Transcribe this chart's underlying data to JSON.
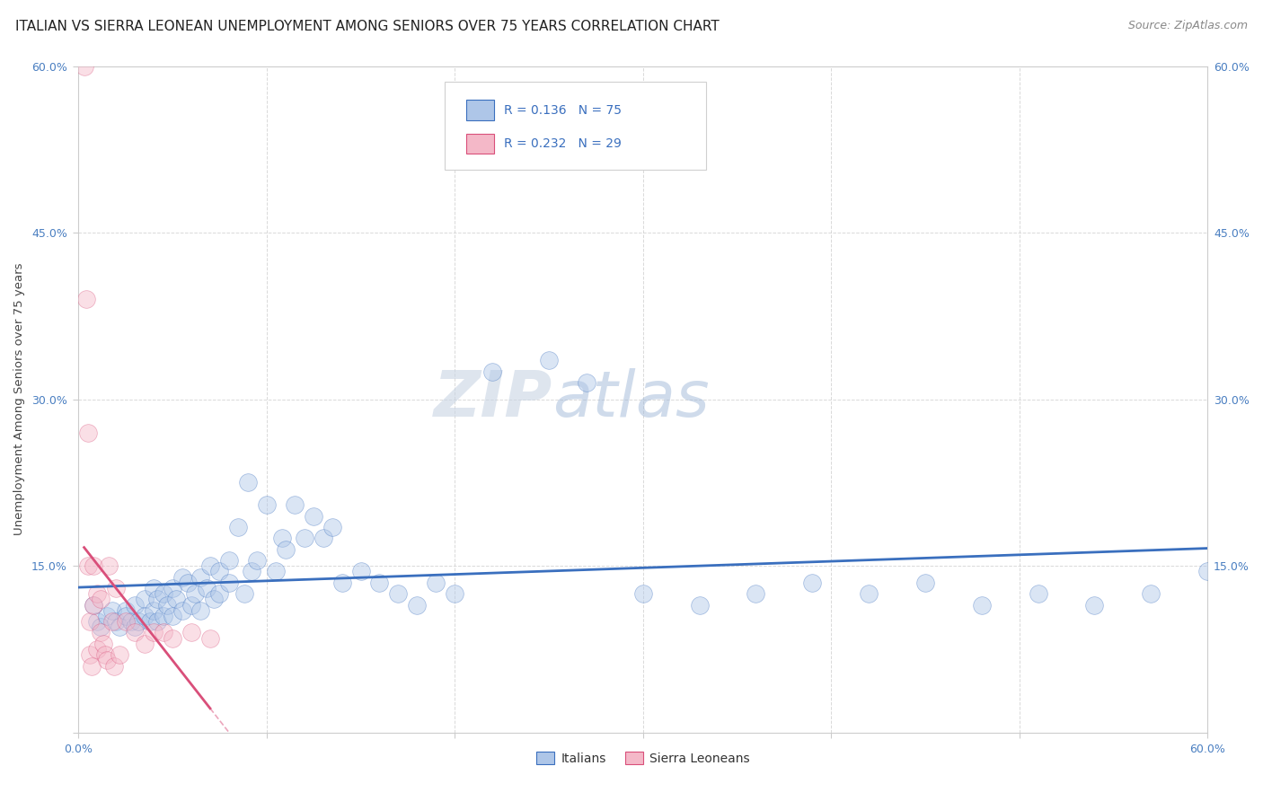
{
  "title": "ITALIAN VS SIERRA LEONEAN UNEMPLOYMENT AMONG SENIORS OVER 75 YEARS CORRELATION CHART",
  "source": "Source: ZipAtlas.com",
  "ylabel": "Unemployment Among Seniors over 75 years",
  "legend_label1": "Italians",
  "legend_label2": "Sierra Leoneans",
  "legend_r1": "R = 0.136",
  "legend_n1": "N = 75",
  "legend_r2": "R = 0.232",
  "legend_n2": "N = 29",
  "italian_color": "#aec6e8",
  "sierra_color": "#f4b8c8",
  "italian_line_color": "#3a6fbe",
  "sierra_line_color": "#d94f7a",
  "background_color": "#ffffff",
  "watermark_zip": "ZIP",
  "watermark_atlas": "atlas",
  "italian_scatter_x": [
    0.008,
    0.01,
    0.012,
    0.015,
    0.018,
    0.02,
    0.022,
    0.025,
    0.025,
    0.028,
    0.03,
    0.03,
    0.032,
    0.035,
    0.035,
    0.038,
    0.04,
    0.04,
    0.042,
    0.042,
    0.045,
    0.045,
    0.047,
    0.05,
    0.05,
    0.052,
    0.055,
    0.055,
    0.058,
    0.06,
    0.062,
    0.065,
    0.065,
    0.068,
    0.07,
    0.072,
    0.075,
    0.075,
    0.08,
    0.08,
    0.085,
    0.088,
    0.09,
    0.092,
    0.095,
    0.1,
    0.105,
    0.108,
    0.11,
    0.115,
    0.12,
    0.125,
    0.13,
    0.135,
    0.14,
    0.15,
    0.16,
    0.17,
    0.18,
    0.19,
    0.2,
    0.22,
    0.25,
    0.27,
    0.3,
    0.33,
    0.36,
    0.39,
    0.42,
    0.45,
    0.48,
    0.51,
    0.54,
    0.57,
    0.6
  ],
  "italian_scatter_y": [
    0.115,
    0.1,
    0.095,
    0.105,
    0.11,
    0.1,
    0.095,
    0.11,
    0.105,
    0.1,
    0.115,
    0.095,
    0.1,
    0.12,
    0.105,
    0.1,
    0.13,
    0.11,
    0.12,
    0.1,
    0.125,
    0.105,
    0.115,
    0.13,
    0.105,
    0.12,
    0.14,
    0.11,
    0.135,
    0.115,
    0.125,
    0.14,
    0.11,
    0.13,
    0.15,
    0.12,
    0.145,
    0.125,
    0.155,
    0.135,
    0.185,
    0.125,
    0.225,
    0.145,
    0.155,
    0.205,
    0.145,
    0.175,
    0.165,
    0.205,
    0.175,
    0.195,
    0.175,
    0.185,
    0.135,
    0.145,
    0.135,
    0.125,
    0.115,
    0.135,
    0.125,
    0.325,
    0.335,
    0.315,
    0.125,
    0.115,
    0.125,
    0.135,
    0.125,
    0.135,
    0.115,
    0.125,
    0.115,
    0.125,
    0.145
  ],
  "sierra_scatter_x": [
    0.003,
    0.004,
    0.005,
    0.005,
    0.006,
    0.006,
    0.007,
    0.008,
    0.008,
    0.01,
    0.01,
    0.012,
    0.012,
    0.013,
    0.014,
    0.015,
    0.016,
    0.018,
    0.019,
    0.02,
    0.022,
    0.025,
    0.03,
    0.035,
    0.04,
    0.045,
    0.05,
    0.06,
    0.07
  ],
  "sierra_scatter_y": [
    0.6,
    0.39,
    0.27,
    0.15,
    0.1,
    0.07,
    0.06,
    0.15,
    0.115,
    0.125,
    0.075,
    0.12,
    0.09,
    0.08,
    0.07,
    0.065,
    0.15,
    0.1,
    0.06,
    0.13,
    0.07,
    0.1,
    0.09,
    0.08,
    0.09,
    0.09,
    0.085,
    0.09,
    0.085
  ],
  "xlim": [
    0.0,
    0.6
  ],
  "ylim": [
    0.0,
    0.6
  ],
  "xtick_vals": [
    0.0,
    0.1,
    0.2,
    0.3,
    0.4,
    0.5,
    0.6
  ],
  "ytick_vals": [
    0.0,
    0.15,
    0.3,
    0.45,
    0.6
  ],
  "ytick_labels_left": [
    "",
    "15.0%",
    "30.0%",
    "45.0%",
    "60.0%"
  ],
  "ytick_labels_right": [
    "",
    "15.0%",
    "30.0%",
    "45.0%",
    "60.0%"
  ],
  "xtick_labels": [
    "0.0%",
    "",
    "",
    "",
    "",
    "",
    "60.0%"
  ],
  "grid_color": "#d0d0d0",
  "title_fontsize": 11,
  "source_fontsize": 9,
  "axis_fontsize": 9,
  "scatter_size": 200,
  "scatter_alpha": 0.45,
  "scatter_linewidth": 0.5
}
